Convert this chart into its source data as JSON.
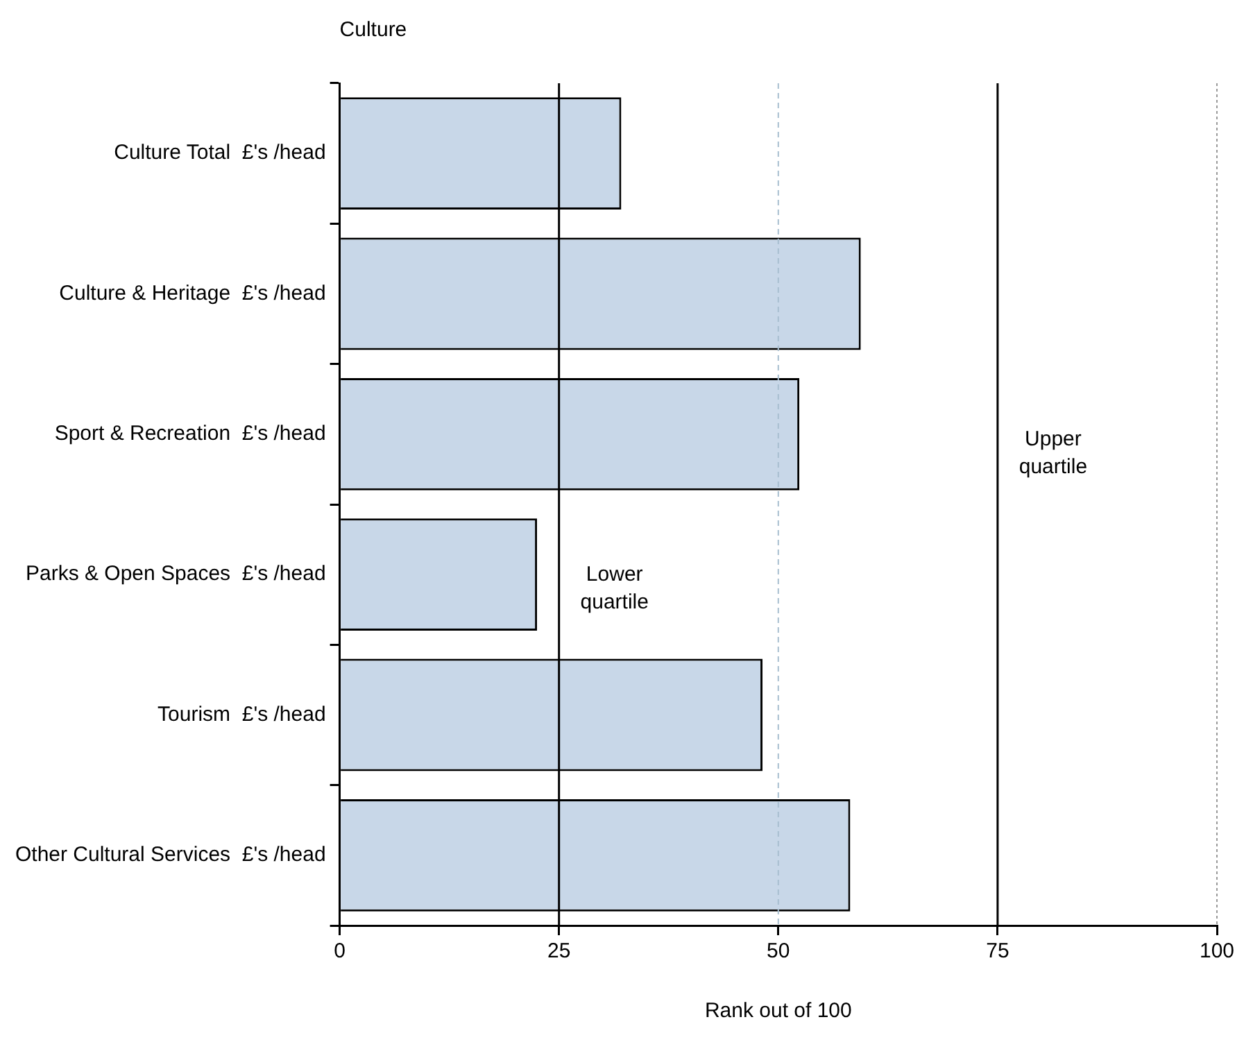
{
  "chart_data": {
    "type": "bar",
    "orientation": "horizontal",
    "title": "Culture",
    "xlabel": "Rank out of 100",
    "categories": [
      "Culture Total  £'s /head",
      "Culture & Heritage  £'s /head",
      "Sport & Recreation  £'s /head",
      "Parks & Open Spaces  £'s /head",
      "Tourism  £'s /head",
      "Other Cultural Services  £'s /head"
    ],
    "values": [
      32.1,
      59.4,
      52.4,
      22.5,
      48.2,
      58.2
    ],
    "color": "#c8d7e8",
    "xlim": [
      0,
      100
    ],
    "xticks": [
      0,
      25,
      50,
      75,
      100
    ],
    "grid": false,
    "legend": false,
    "ref_lines": [
      {
        "axis": "x",
        "value": 25,
        "label": "Lower quartile",
        "color": "#000000",
        "line_style": "solid"
      },
      {
        "axis": "x",
        "value": 50,
        "label": null,
        "color": "#a8bfd0",
        "line_style": "dashed"
      },
      {
        "axis": "x",
        "value": 75,
        "label": "Upper quartile",
        "color": "#000000",
        "line_style": "solid"
      },
      {
        "axis": "x",
        "value": 100,
        "label": null,
        "color": "#999999",
        "line_style": "dotted"
      }
    ]
  }
}
